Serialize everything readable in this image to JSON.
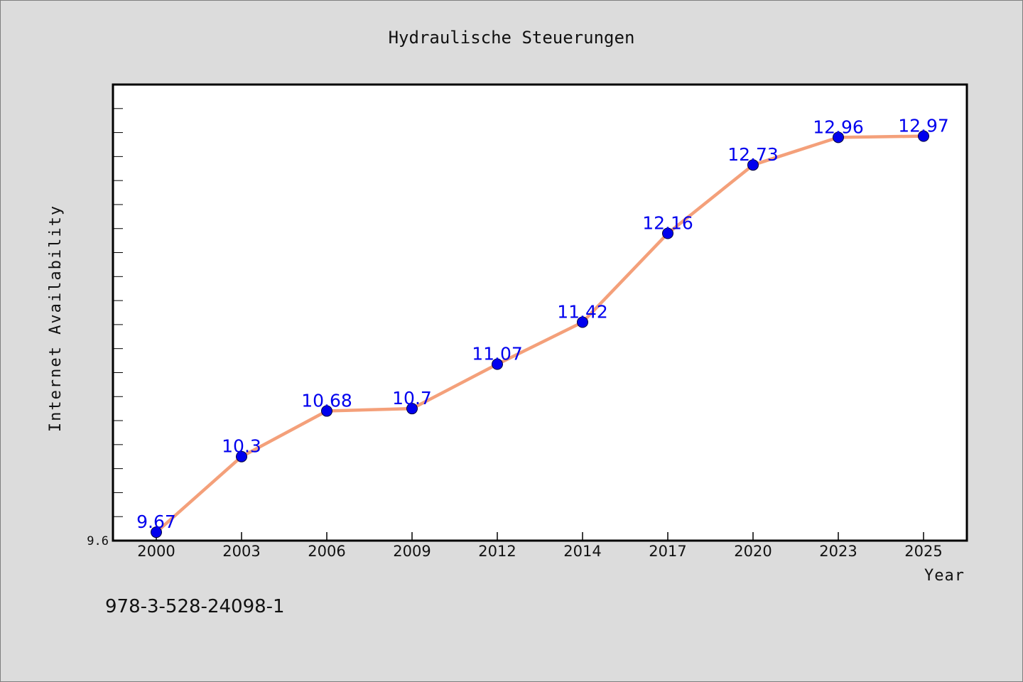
{
  "chart_data": {
    "type": "line",
    "title": "Hydraulische Steuerungen",
    "xlabel": "Year",
    "ylabel": "Internet Availability",
    "categories": [
      "2000",
      "2003",
      "2006",
      "2009",
      "2012",
      "2014",
      "2017",
      "2020",
      "2023",
      "2025"
    ],
    "series": [
      {
        "values": [
          9.67,
          10.3,
          10.68,
          10.7,
          11.07,
          11.42,
          12.16,
          12.73,
          12.96,
          12.97
        ],
        "data_labels": [
          "9.67",
          "10.3",
          "10.68",
          "10.7",
          "11.07",
          "11.42",
          "12.16",
          "12.73",
          "12.96",
          "12.97"
        ]
      }
    ],
    "y_tick_labels": [
      "9.6"
    ],
    "ylim": [
      9.6,
      13.4
    ],
    "grid": false,
    "line_color": "#f4a07a",
    "marker_color": "#0000ee",
    "label_color": "#0000ee",
    "background_color": "#dcdcdc",
    "plot_background": "#ffffff"
  },
  "footer": {
    "isbn": "978-3-528-24098-1"
  }
}
